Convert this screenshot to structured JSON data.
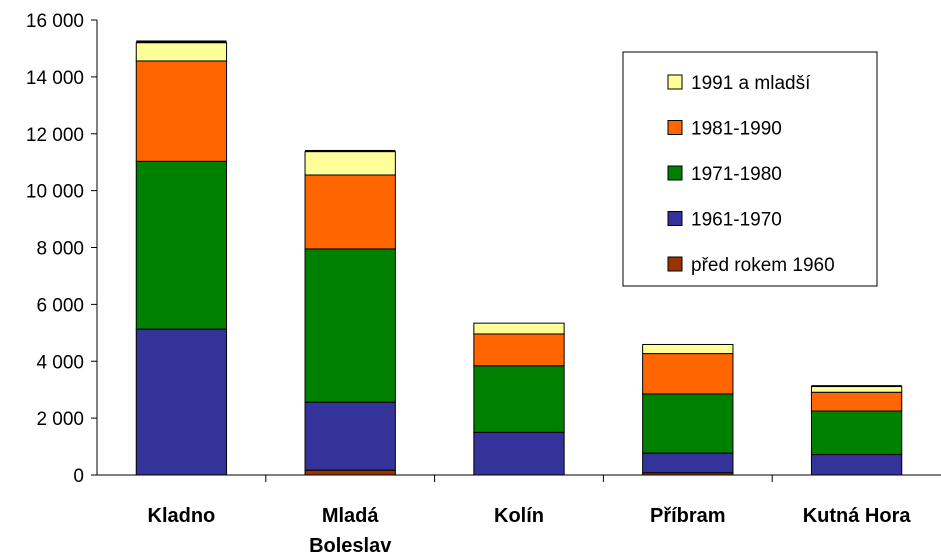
{
  "chart_data": {
    "type": "bar",
    "stacked": true,
    "title": "",
    "xlabel": "",
    "ylabel": "",
    "ylim": [
      0,
      16000
    ],
    "y_ticks": [
      0,
      2000,
      4000,
      6000,
      8000,
      10000,
      12000,
      14000,
      16000
    ],
    "y_tick_labels": [
      "0",
      "2 000",
      "4 000",
      "6 000",
      "8 000",
      "10 000",
      "12 000",
      "14 000",
      "16 000"
    ],
    "categories": [
      "Kladno",
      "Mladá Boleslav",
      "Kolín",
      "Příbram",
      "Kutná Hora"
    ],
    "category_lines": [
      [
        "Kladno"
      ],
      [
        "Mladá",
        "Boleslav"
      ],
      [
        "Kolín"
      ],
      [
        "Příbram"
      ],
      [
        "Kutná Hora"
      ]
    ],
    "series": [
      {
        "name": "před rokem 1960",
        "color": "#993300",
        "values": [
          0,
          170,
          0,
          80,
          0
        ]
      },
      {
        "name": "1961-1970",
        "color": "#333399",
        "values": [
          5130,
          2390,
          1500,
          690,
          720
        ]
      },
      {
        "name": "1971-1980",
        "color": "#008000",
        "values": [
          5900,
          5390,
          2340,
          2080,
          1530
        ]
      },
      {
        "name": "1981-1990",
        "color": "#ff6600",
        "values": [
          3530,
          2600,
          1120,
          1420,
          660
        ]
      },
      {
        "name": "1991 a mladší",
        "color": "#ffff99",
        "values": [
          640,
          820,
          380,
          320,
          200
        ]
      },
      {
        "name": "",
        "color": "#000000",
        "values": [
          80,
          60,
          0,
          0,
          50
        ]
      }
    ],
    "legend_order": [
      4,
      3,
      2,
      1,
      0
    ],
    "legend_position": "top-right",
    "grid": false
  }
}
